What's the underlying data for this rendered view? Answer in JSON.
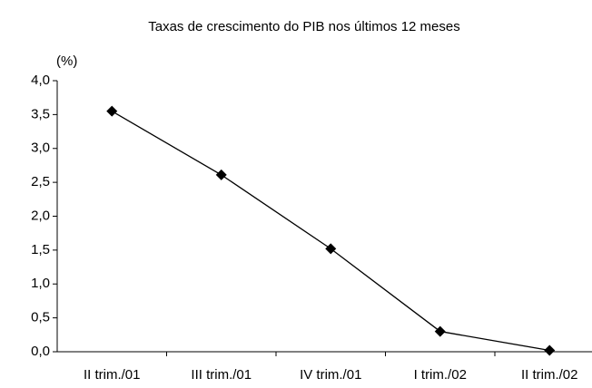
{
  "chart_data": {
    "type": "line",
    "title": "Taxas de crescimento do PIB nos últimos 12 meses",
    "y_label": "(%)",
    "categories": [
      "II trim./01",
      "III trim./01",
      "IV trim./01",
      "I trim./02",
      "II trim./02"
    ],
    "values": [
      3.55,
      2.61,
      1.52,
      0.3,
      0.02
    ],
    "color": "#000000",
    "ylim": [
      0,
      4
    ],
    "yticks": [
      {
        "value": 0,
        "label": "0,0"
      },
      {
        "value": 0.5,
        "label": "0,5"
      },
      {
        "value": 1,
        "label": "1,0"
      },
      {
        "value": 1.5,
        "label": "1,5"
      },
      {
        "value": 2,
        "label": "2,0"
      },
      {
        "value": 2.5,
        "label": "2,5"
      },
      {
        "value": 3,
        "label": "3,0"
      },
      {
        "value": 3.5,
        "label": "3,5"
      },
      {
        "value": 4,
        "label": "4,0"
      }
    ],
    "grid": false
  }
}
